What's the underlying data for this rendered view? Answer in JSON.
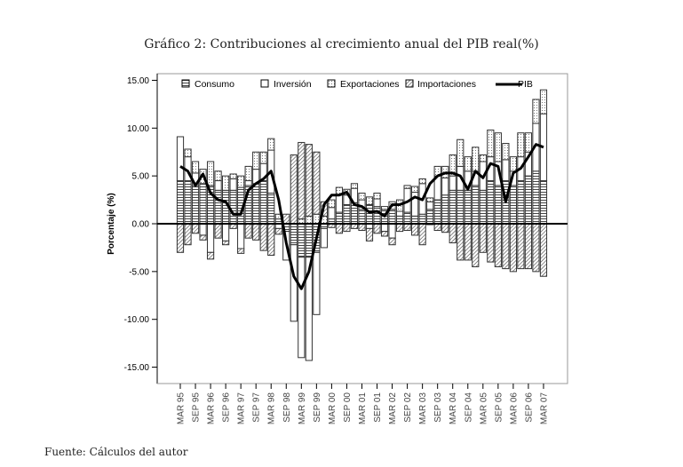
{
  "chart_data": {
    "type": "bar",
    "title": "Gráfico 2: Contribuciones al crecimiento anual del PIB real(%)",
    "source": "Fuente: Cálculos del autor",
    "ylabel": "Porcentaje (%)",
    "xlabel": "",
    "ylim": [
      -17,
      16
    ],
    "yticks": [
      15,
      10,
      5,
      0,
      -5,
      -10,
      -15
    ],
    "ytick_labels": [
      "15.00",
      "10.00",
      "5.00",
      "0.00",
      "-5.00",
      "-10.00",
      "-15.00"
    ],
    "xtick_labels": [
      "MAR 95",
      "SEP 95",
      "MAR 96",
      "SEP 96",
      "MAR 97",
      "SEP 97",
      "MAR 98",
      "SEP 98",
      "MAR 99",
      "SEP 99",
      "MAR 00",
      "SEP 00",
      "MAR 01",
      "SEP 01",
      "MAR 02",
      "SEP 02",
      "MAR 03",
      "SEP 03",
      "MAR 04",
      "SEP 04",
      "MAR 05",
      "SEP 05",
      "MAR 06",
      "SEP 06",
      "MAR 07"
    ],
    "legend": {
      "placement": "top",
      "entries": [
        "Consumo",
        "Inversión",
        "Exportaciones",
        "Importaciones",
        "PIB"
      ]
    },
    "series": [
      {
        "name": "Consumo",
        "kind": "bar",
        "values": [
          4.5,
          4.5,
          4.0,
          4.2,
          4.0,
          3.5,
          3.5,
          3.5,
          3.8,
          4.0,
          4.2,
          4.5,
          3.2,
          0.5,
          -0.8,
          -2.2,
          -3.5,
          -3.5,
          -3.0,
          -0.5,
          0.5,
          1.2,
          2.0,
          2.2,
          1.5,
          2.0,
          1.8,
          1.5,
          1.5,
          0.8,
          1.2,
          0.8,
          1.0,
          1.5,
          2.5,
          3.0,
          3.5,
          3.5,
          3.5,
          4.0,
          3.5,
          4.5,
          4.0,
          4.5,
          4.0,
          4.5,
          5.0,
          5.5,
          4.5
        ]
      },
      {
        "name": "Inversión",
        "kind": "bar",
        "values": [
          4.6,
          2.5,
          1.3,
          -1.2,
          -3.0,
          1.0,
          -1.8,
          1.2,
          -2.6,
          0.5,
          1.5,
          1.8,
          4.5,
          -0.5,
          -3.0,
          -8.0,
          -10.5,
          -10.8,
          -6.5,
          -2.0,
          1.2,
          1.8,
          1.0,
          1.5,
          1.0,
          -0.5,
          0.8,
          -0.8,
          -1.5,
          0.5,
          2.5,
          2.5,
          3.2,
          0.8,
          2.5,
          1.8,
          1.5,
          2.5,
          2.0,
          1.5,
          3.0,
          2.5,
          2.5,
          2.2,
          1.5,
          2.5,
          2.5,
          5.0,
          7.0
        ]
      },
      {
        "name": "Exportaciones",
        "kind": "bar",
        "values": [
          0.0,
          0.8,
          1.2,
          1.5,
          2.5,
          1.0,
          1.5,
          0.5,
          1.2,
          1.5,
          1.8,
          1.2,
          1.2,
          0.5,
          0.0,
          0.0,
          0.5,
          0.8,
          1.0,
          0.8,
          0.8,
          0.8,
          0.6,
          0.5,
          0.7,
          0.8,
          0.6,
          0.3,
          0.8,
          1.2,
          0.3,
          0.6,
          0.5,
          0.4,
          1.0,
          1.2,
          2.2,
          2.8,
          1.5,
          2.5,
          0.7,
          2.8,
          3.0,
          1.7,
          1.5,
          2.5,
          2.0,
          2.5,
          2.5
        ]
      },
      {
        "name": "Importaciones",
        "kind": "bar",
        "values": [
          -3.0,
          -2.2,
          -1.0,
          -0.5,
          -0.7,
          -1.5,
          -0.4,
          -0.5,
          -0.5,
          -1.5,
          -1.7,
          -2.8,
          -3.3,
          -0.6,
          1.0,
          7.2,
          8.0,
          7.5,
          6.5,
          1.5,
          -0.4,
          -1.0,
          -0.8,
          -0.5,
          -0.7,
          -1.3,
          -1.0,
          -0.5,
          -0.7,
          -0.8,
          -0.7,
          -1.2,
          -2.2,
          -0.1,
          -0.7,
          -0.9,
          -2.0,
          -3.8,
          -3.8,
          -4.5,
          -3.0,
          -4.0,
          -4.5,
          -4.7,
          -5.0,
          -4.7,
          -4.7,
          -5.0,
          -5.5
        ]
      },
      {
        "name": "PIB",
        "kind": "line",
        "values": [
          6.0,
          5.5,
          4.0,
          5.2,
          3.2,
          2.5,
          2.3,
          1.0,
          1.0,
          3.5,
          4.2,
          4.7,
          5.5,
          2.5,
          -2.0,
          -5.5,
          -6.8,
          -5.0,
          -1.5,
          2.0,
          3.0,
          3.0,
          3.3,
          2.0,
          1.8,
          1.2,
          1.3,
          0.8,
          2.0,
          2.0,
          2.3,
          2.8,
          2.5,
          4.2,
          5.0,
          5.3,
          5.3,
          5.0,
          3.6,
          5.5,
          4.8,
          6.3,
          6.0,
          2.3,
          5.3,
          5.8,
          7.0,
          8.3,
          8.0
        ]
      }
    ]
  }
}
